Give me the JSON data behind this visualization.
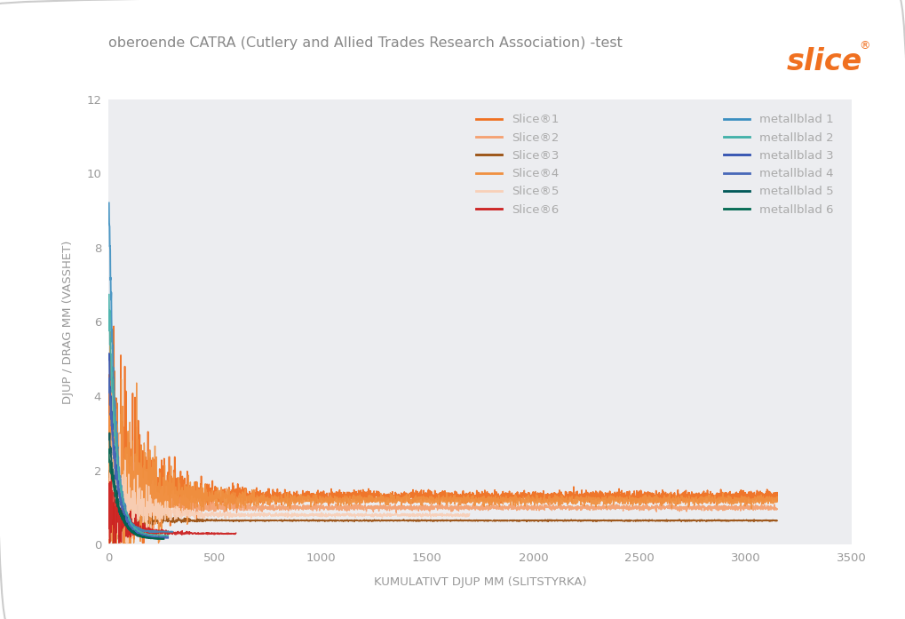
{
  "title": "oberoende CATRA (Cutlery and Allied Trades Research Association) -test",
  "xlabel": "KUMULATIVT DJUP MM (SLITSTYRKA)",
  "ylabel": "DJUP / DRAG MM (VASSHET)",
  "xlim": [
    0,
    3500
  ],
  "ylim": [
    0,
    12
  ],
  "xticks": [
    0,
    500,
    1000,
    1500,
    2000,
    2500,
    3000,
    3500
  ],
  "yticks": [
    0,
    2,
    4,
    6,
    8,
    10,
    12
  ],
  "background_color": "#ffffff",
  "plot_bg_color": "#ecedf0",
  "title_color": "#888888",
  "axis_label_color": "#999999",
  "tick_color": "#999999",
  "slice_colors": [
    "#f07020",
    "#f5a070",
    "#9a5010",
    "#f09040",
    "#f8d0b8",
    "#cc2020"
  ],
  "metal_colors": [
    "#3a8ec0",
    "#40b0a8",
    "#3050b0",
    "#4868b8",
    "#005858",
    "#006850"
  ],
  "legend_text_color": "#aaaaaa",
  "slice_labels": [
    "Slice®1",
    "Slice®2",
    "Slice®3",
    "Slice®4",
    "Slice®5",
    "Slice®6"
  ],
  "metal_labels": [
    "metallblad 1",
    "metallblad 2",
    "metallblad 3",
    "metallblad 4",
    "metallblad 5",
    "metallblad 6"
  ],
  "n_points": 3150,
  "logo_color": "#f07020"
}
